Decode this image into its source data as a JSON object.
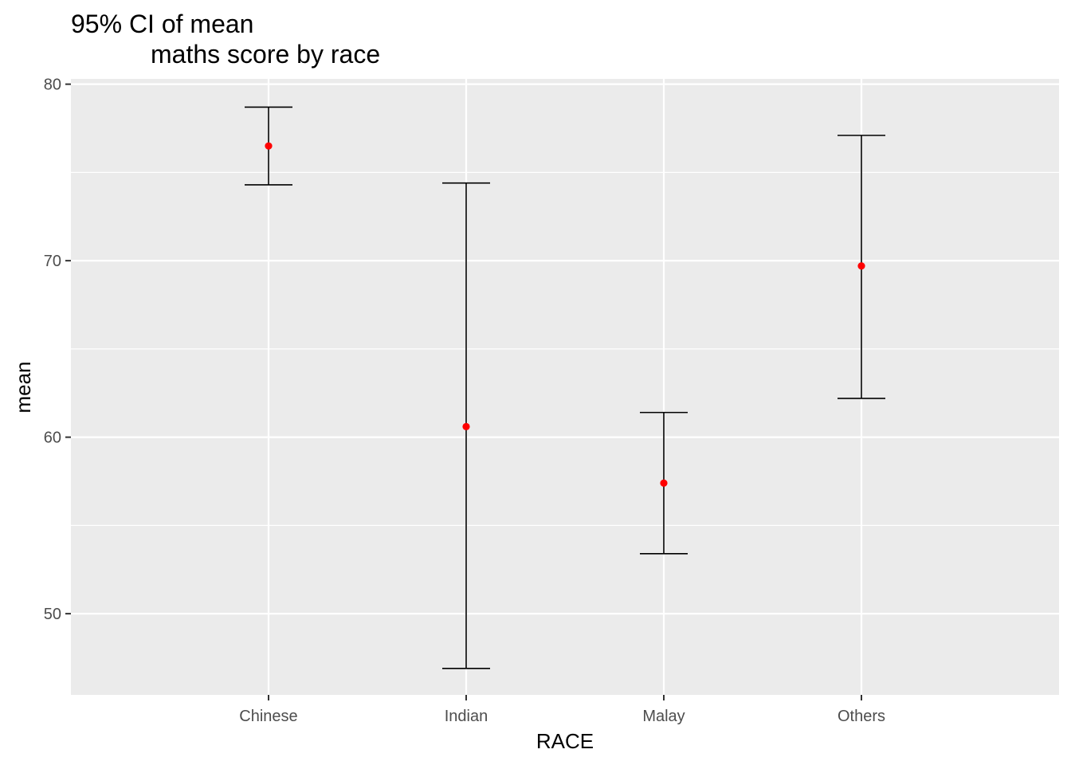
{
  "chart_data": {
    "type": "errorbar",
    "title_lines": [
      "95% CI of mean",
      "maths score by race"
    ],
    "xlabel": "RACE",
    "ylabel": "mean",
    "categories": [
      "Chinese",
      "Indian",
      "Malay",
      "Others"
    ],
    "mean": [
      76.5,
      60.6,
      57.4,
      69.7
    ],
    "lower": [
      74.3,
      46.9,
      53.4,
      62.2
    ],
    "upper": [
      78.7,
      74.4,
      61.4,
      77.1
    ],
    "ylim": [
      45.4,
      80.3
    ],
    "yticks": [
      50,
      60,
      70,
      80
    ],
    "y_minor_ticks": [
      55,
      65,
      75
    ],
    "grid": true,
    "point_color": "#ff0000",
    "errorbar_color": "#000000",
    "panel_background": "#ebebeb",
    "grid_color": "#ffffff"
  }
}
